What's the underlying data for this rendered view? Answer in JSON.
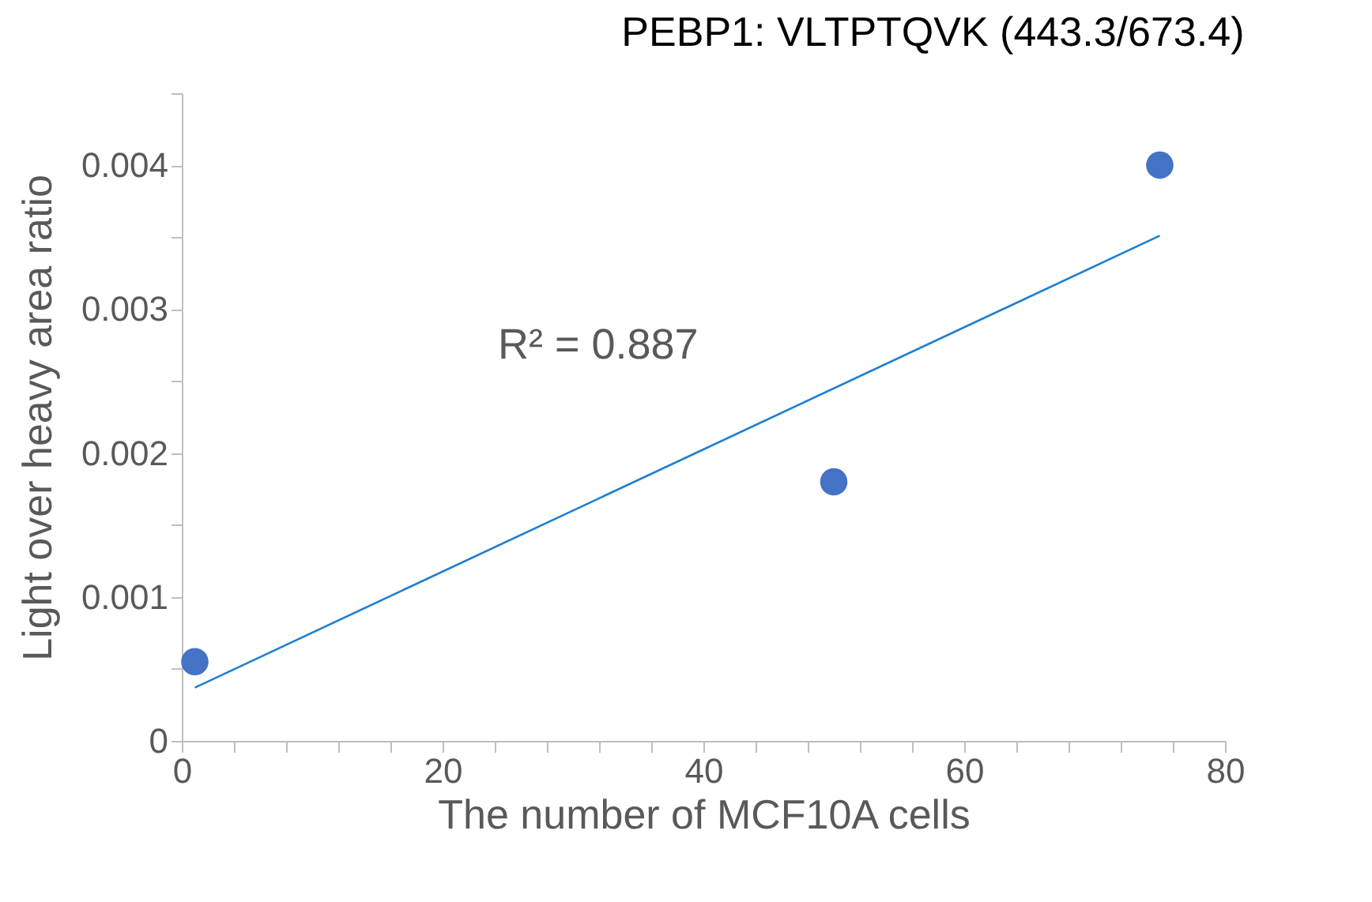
{
  "chart_data": {
    "type": "scatter",
    "title": "PEBP1: VLTPTQVK (443.3/673.4)",
    "xlabel": "The number of MCF10A cells",
    "ylabel": "Light over heavy area ratio",
    "marker": "circle",
    "grid": false,
    "xlim": [
      0,
      80
    ],
    "xticks": [
      0,
      {
        "value": 4,
        "label": null
      },
      {
        "value": 8,
        "label": null
      },
      {
        "value": 12,
        "label": null
      },
      {
        "value": 16,
        "label": null
      },
      20,
      {
        "value": 24,
        "label": null
      },
      {
        "value": 28,
        "label": null
      },
      {
        "value": 32,
        "label": null
      },
      {
        "value": 36,
        "label": null
      },
      40,
      {
        "value": 44,
        "label": null
      },
      {
        "value": 48,
        "label": null
      },
      {
        "value": 52,
        "label": null
      },
      {
        "value": 56,
        "label": null
      },
      60,
      {
        "value": 64,
        "label": null
      },
      {
        "value": 68,
        "label": null
      },
      {
        "value": 72,
        "label": null
      },
      {
        "value": 76,
        "label": null
      },
      80
    ],
    "ylim": [
      0,
      0.0045
    ],
    "yticks": [
      0,
      {
        "value": 0.0005,
        "label": null
      },
      0.001,
      {
        "value": 0.0015,
        "label": null
      },
      0.002,
      {
        "value": 0.0025,
        "label": null
      },
      0.003,
      {
        "value": 0.0035,
        "label": null
      },
      0.004,
      {
        "value": 0.0045,
        "label": null
      }
    ],
    "series": [
      {
        "color": "#4472c4",
        "x": [
          1,
          50,
          75
        ],
        "values": [
          0.00055,
          0.0018,
          0.004
        ]
      },
      {
        "type": "line",
        "marker": "none",
        "color": "#1f7fd0",
        "x": [
          1,
          75
        ],
        "values": [
          0.00037,
          0.00351
        ]
      }
    ],
    "annotations": [
      "R² = 0.887"
    ]
  }
}
